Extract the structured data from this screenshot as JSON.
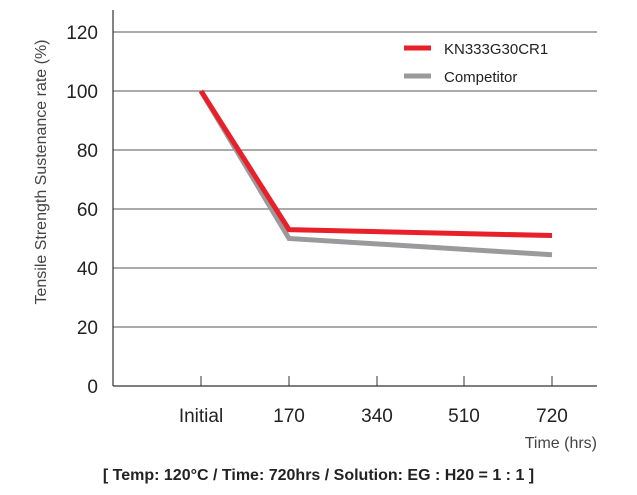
{
  "chart_data": {
    "type": "line",
    "categories": [
      "Initial",
      "170",
      "340",
      "510",
      "720"
    ],
    "xlabel": "Time (hrs)",
    "ylabel": "Tensile Strength Sustenance rate (%)",
    "ylim": [
      0,
      120
    ],
    "yticks": [
      0,
      20,
      40,
      60,
      80,
      100,
      120
    ],
    "grid": true,
    "legend_position": "top-right",
    "series": [
      {
        "name": "KN333G30CR1",
        "color": "#e8202a",
        "x": [
          "Initial",
          "170",
          "720"
        ],
        "values": [
          100,
          53,
          51
        ]
      },
      {
        "name": "Competitor",
        "color": "#9a9a9c",
        "x": [
          "Initial",
          "170",
          "720"
        ],
        "values": [
          100,
          50,
          44.5
        ]
      }
    ]
  },
  "caption": "[ Temp: 120°C / Time: 720hrs / Solution: EG : H20 = 1 : 1 ]"
}
